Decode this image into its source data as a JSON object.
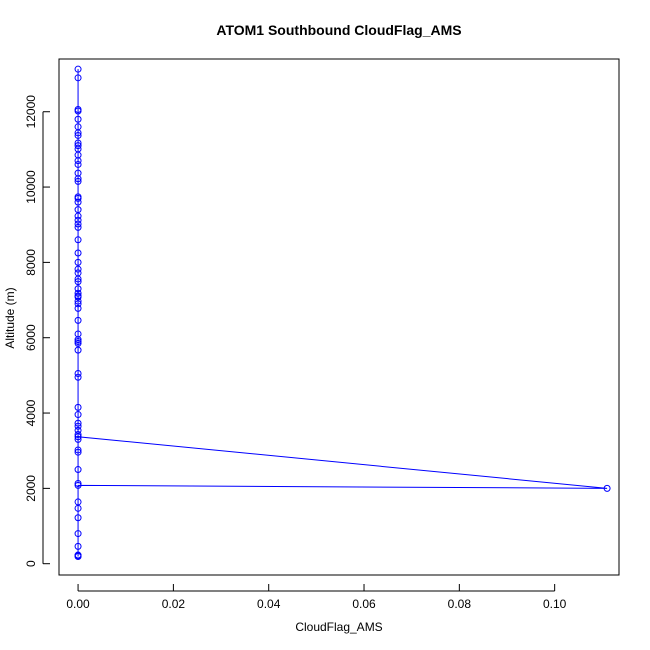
{
  "chart_data": {
    "type": "line",
    "title": "ATOM1 Southbound CloudFlag_AMS",
    "xlabel": "CloudFlag_AMS",
    "ylabel": "Altitude (m)",
    "xlim": [
      -0.004,
      0.1135
    ],
    "ylim": [
      -300,
      13400
    ],
    "xticks": [
      0,
      0.02,
      0.04,
      0.06,
      0.08,
      0.1
    ],
    "xtick_labels": [
      "0.00",
      "0.02",
      "0.04",
      "0.06",
      "0.08",
      "0.10"
    ],
    "yticks": [
      0,
      2000,
      4000,
      6000,
      8000,
      10000,
      12000
    ],
    "ytick_labels": [
      "0",
      "2000",
      "4000",
      "6000",
      "8000",
      "10000",
      "12000"
    ],
    "grid": false,
    "color": "#0000ff",
    "marker": "open-circle",
    "series": [
      {
        "x": [
          0,
          0,
          0,
          0,
          0,
          0,
          0,
          0,
          0,
          0.111,
          0,
          0,
          0,
          0,
          0,
          0,
          0,
          0,
          0,
          0,
          0,
          0,
          0,
          0,
          0,
          0,
          0,
          0,
          0,
          0,
          0,
          0,
          0,
          0,
          0,
          0,
          0,
          0,
          0,
          0,
          0,
          0,
          0,
          0,
          0,
          0,
          0,
          0,
          0,
          0,
          0,
          0,
          0,
          0,
          0,
          0,
          0,
          0,
          0,
          0,
          0,
          0,
          0,
          0,
          0,
          0,
          0,
          0,
          0
        ],
        "y": [
          190,
          210,
          230,
          460,
          800,
          1220,
          1470,
          1640,
          2080,
          2000,
          3370,
          3430,
          3540,
          3650,
          3730,
          3960,
          2960,
          3020,
          2130,
          4950,
          5050,
          5670,
          5850,
          5900,
          6100,
          6460,
          6780,
          6970,
          7080,
          7110,
          7180,
          7490,
          7560,
          7720,
          7820,
          8000,
          8250,
          8930,
          9020,
          9120,
          9230,
          9400,
          9700,
          9740,
          10150,
          10220,
          10370,
          10700,
          10850,
          11010,
          11100,
          11170,
          11370,
          11440,
          11600,
          12020,
          12060,
          13130,
          12900,
          11800,
          10600,
          9600,
          8600,
          7300,
          6900,
          5950,
          4150,
          3300,
          2500
        ]
      }
    ]
  }
}
